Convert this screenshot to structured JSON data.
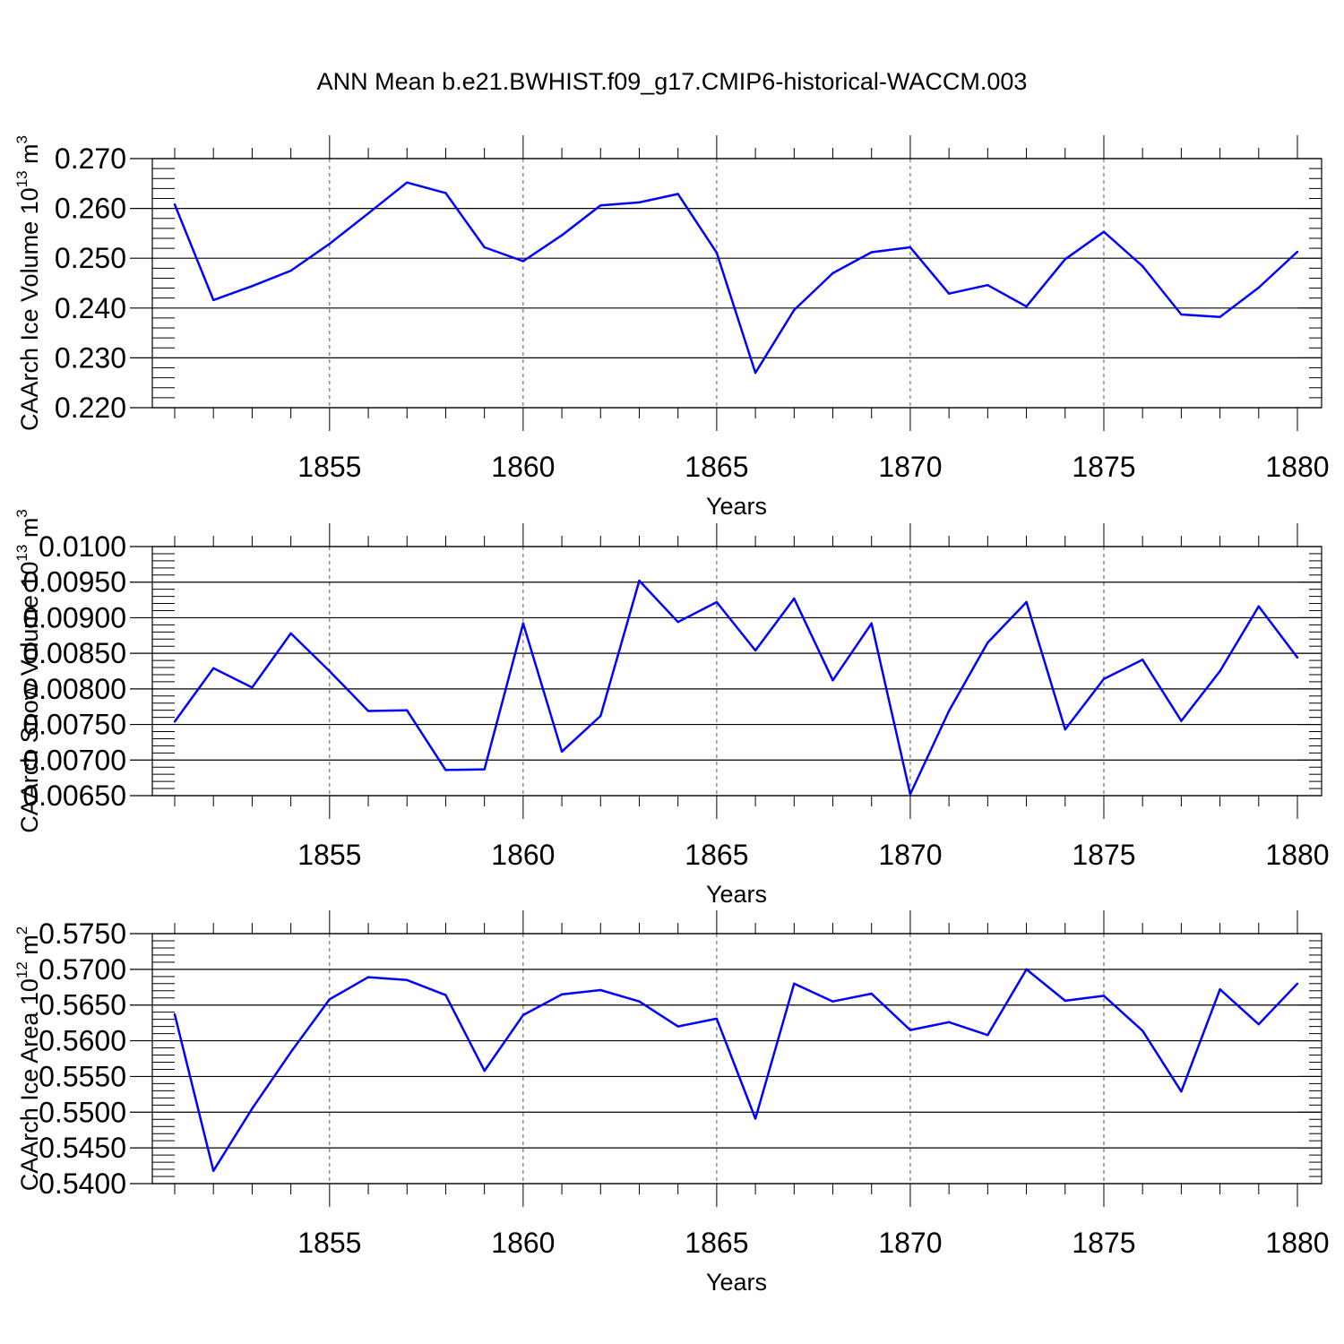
{
  "title": "ANN Mean b.e21.BWHIST.f09_g17.CMIP6-historical-WACCM.003",
  "chart_data": [
    {
      "type": "line",
      "ylabel": "CAArch Ice Volume 10",
      "ylabel_exp": "13",
      "ylabel_unit": " m",
      "ylabel_unit_exp": "3",
      "xlabel": "Years",
      "xlim": [
        1851,
        1880
      ],
      "ylim": [
        0.22,
        0.27
      ],
      "yticks": [
        0.22,
        0.23,
        0.24,
        0.25,
        0.26,
        0.27
      ],
      "ytick_labels": [
        "0.220",
        "0.230",
        "0.240",
        "0.250",
        "0.260",
        "0.270"
      ],
      "xticks": [
        1855,
        1860,
        1865,
        1870,
        1875,
        1880
      ],
      "xtick_labels": [
        "1855",
        "1860",
        "1865",
        "1870",
        "1875",
        "1880"
      ],
      "grid": "vertical-dashed-at-major-x",
      "color": "#0000ff",
      "x": [
        1851,
        1852,
        1853,
        1854,
        1855,
        1856,
        1857,
        1858,
        1859,
        1860,
        1861,
        1862,
        1863,
        1864,
        1865,
        1866,
        1867,
        1868,
        1869,
        1870,
        1871,
        1872,
        1873,
        1874,
        1875,
        1876,
        1877,
        1878,
        1879,
        1880
      ],
      "values": [
        0.2608,
        0.2416,
        0.2444,
        0.2475,
        0.2529,
        0.259,
        0.2652,
        0.2631,
        0.2522,
        0.2494,
        0.2546,
        0.2606,
        0.2612,
        0.2629,
        0.2511,
        0.227,
        0.2396,
        0.247,
        0.2512,
        0.2522,
        0.2429,
        0.2446,
        0.2403,
        0.2498,
        0.2553,
        0.2484,
        0.2387,
        0.2382,
        0.2441,
        0.2513
      ]
    },
    {
      "type": "line",
      "ylabel": "CAArch Snow Volume 10",
      "ylabel_exp": "13",
      "ylabel_unit": " m",
      "ylabel_unit_exp": "3",
      "xlabel": "Years",
      "xlim": [
        1851,
        1880
      ],
      "ylim": [
        0.0065,
        0.01
      ],
      "yticks": [
        0.0065,
        0.007,
        0.0075,
        0.008,
        0.0085,
        0.009,
        0.0095,
        0.01
      ],
      "ytick_labels": [
        "0.00650",
        "0.00700",
        "0.00750",
        "0.00800",
        "0.00850",
        "0.00900",
        "0.00950",
        "0.0100"
      ],
      "xticks": [
        1855,
        1860,
        1865,
        1870,
        1875,
        1880
      ],
      "xtick_labels": [
        "1855",
        "1860",
        "1865",
        "1870",
        "1875",
        "1880"
      ],
      "grid": "vertical-dashed-at-major-x",
      "color": "#0000ff",
      "x": [
        1851,
        1852,
        1853,
        1854,
        1855,
        1856,
        1857,
        1858,
        1859,
        1860,
        1861,
        1862,
        1863,
        1864,
        1865,
        1866,
        1867,
        1868,
        1869,
        1870,
        1871,
        1872,
        1873,
        1874,
        1875,
        1876,
        1877,
        1878,
        1879,
        1880
      ],
      "values": [
        0.00754,
        0.00829,
        0.00802,
        0.00878,
        0.00825,
        0.00769,
        0.0077,
        0.00686,
        0.00687,
        0.00892,
        0.00712,
        0.00762,
        0.00952,
        0.00894,
        0.00922,
        0.00854,
        0.00927,
        0.00812,
        0.00892,
        0.00652,
        0.00769,
        0.00865,
        0.00922,
        0.00743,
        0.00814,
        0.00841,
        0.00755,
        0.00825,
        0.00916,
        0.00844
      ]
    },
    {
      "type": "line",
      "ylabel": "CAArch Ice Area 10",
      "ylabel_exp": "12",
      "ylabel_unit": " m",
      "ylabel_unit_exp": "2",
      "xlabel": "Years",
      "xlim": [
        1851,
        1880
      ],
      "ylim": [
        0.54,
        0.575
      ],
      "yticks": [
        0.54,
        0.545,
        0.55,
        0.555,
        0.56,
        0.565,
        0.57,
        0.575
      ],
      "ytick_labels": [
        "0.5400",
        "0.5450",
        "0.5500",
        "0.5550",
        "0.5600",
        "0.5650",
        "0.5700",
        "0.5750"
      ],
      "xticks": [
        1855,
        1860,
        1865,
        1870,
        1875,
        1880
      ],
      "xtick_labels": [
        "1855",
        "1860",
        "1865",
        "1870",
        "1875",
        "1880"
      ],
      "grid": "vertical-dashed-at-major-x",
      "color": "#0000ff",
      "x": [
        1851,
        1852,
        1853,
        1854,
        1855,
        1856,
        1857,
        1858,
        1859,
        1860,
        1861,
        1862,
        1863,
        1864,
        1865,
        1866,
        1867,
        1868,
        1869,
        1870,
        1871,
        1872,
        1873,
        1874,
        1875,
        1876,
        1877,
        1878,
        1879,
        1880
      ],
      "values": [
        0.5637,
        0.5418,
        0.5505,
        0.5584,
        0.5658,
        0.5689,
        0.5685,
        0.5664,
        0.5558,
        0.5636,
        0.5665,
        0.5671,
        0.5655,
        0.562,
        0.5631,
        0.5491,
        0.568,
        0.5655,
        0.5666,
        0.5615,
        0.5626,
        0.5608,
        0.57,
        0.5656,
        0.5663,
        0.5614,
        0.5529,
        0.5672,
        0.5623,
        0.568
      ]
    }
  ]
}
